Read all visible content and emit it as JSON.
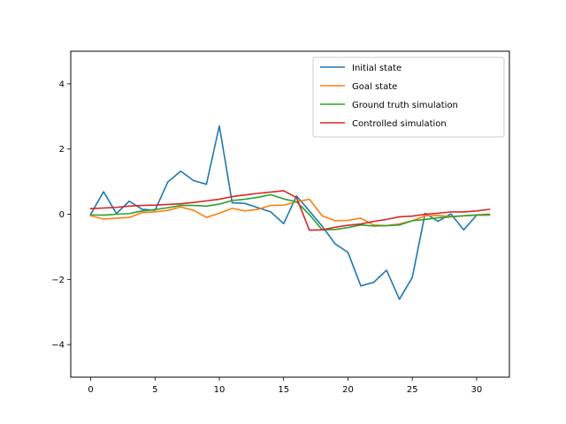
{
  "chart_data": {
    "type": "line",
    "title": "",
    "xlabel": "",
    "ylabel": "",
    "xlim": [
      -1.55,
      32.55
    ],
    "ylim": [
      -5,
      5
    ],
    "x_ticks": [
      0,
      5,
      10,
      15,
      20,
      25,
      30
    ],
    "y_ticks": [
      -4,
      -2,
      0,
      2,
      4
    ],
    "grid": false,
    "legend_position": "upper-right",
    "x": [
      0,
      1,
      2,
      3,
      4,
      5,
      6,
      7,
      8,
      9,
      10,
      11,
      12,
      13,
      14,
      15,
      16,
      17,
      18,
      19,
      20,
      21,
      22,
      23,
      24,
      25,
      26,
      27,
      28,
      29,
      30,
      31
    ],
    "series": [
      {
        "name": "Initial state",
        "color": "#1f77b4",
        "values": [
          0.0,
          0.69,
          0.02,
          0.4,
          0.15,
          0.12,
          0.99,
          1.32,
          1.03,
          0.92,
          2.71,
          0.35,
          0.33,
          0.2,
          0.07,
          -0.29,
          0.56,
          0.1,
          -0.37,
          -0.91,
          -1.17,
          -2.2,
          -2.09,
          -1.72,
          -2.61,
          -1.94,
          0.03,
          -0.22,
          0.01,
          -0.48,
          -0.03,
          -0.03
        ]
      },
      {
        "name": "Goal state",
        "color": "#ff7f0e",
        "values": [
          -0.05,
          -0.15,
          -0.12,
          -0.1,
          0.05,
          0.07,
          0.12,
          0.22,
          0.12,
          -0.1,
          0.03,
          0.18,
          0.1,
          0.15,
          0.27,
          0.28,
          0.38,
          0.46,
          -0.05,
          -0.2,
          -0.19,
          -0.12,
          -0.33,
          -0.35,
          -0.3,
          -0.2,
          -0.05,
          -0.04,
          -0.07,
          -0.05,
          -0.03,
          -0.02
        ]
      },
      {
        "name": "Ground truth simulation",
        "color": "#2ca02c",
        "values": [
          -0.02,
          -0.03,
          0.0,
          0.02,
          0.1,
          0.14,
          0.2,
          0.27,
          0.27,
          0.25,
          0.31,
          0.42,
          0.46,
          0.52,
          0.6,
          0.47,
          0.38,
          -0.01,
          -0.48,
          -0.47,
          -0.41,
          -0.33,
          -0.36,
          -0.35,
          -0.33,
          -0.2,
          -0.16,
          -0.11,
          -0.08,
          -0.05,
          -0.02,
          0.0
        ]
      },
      {
        "name": "Controlled simulation",
        "color": "#d62728",
        "values": [
          0.17,
          0.19,
          0.21,
          0.25,
          0.27,
          0.28,
          0.3,
          0.32,
          0.36,
          0.41,
          0.46,
          0.54,
          0.59,
          0.64,
          0.68,
          0.72,
          0.51,
          -0.49,
          -0.48,
          -0.4,
          -0.34,
          -0.3,
          -0.22,
          -0.16,
          -0.08,
          -0.06,
          0.0,
          0.03,
          0.07,
          0.07,
          0.1,
          0.15
        ]
      }
    ]
  }
}
